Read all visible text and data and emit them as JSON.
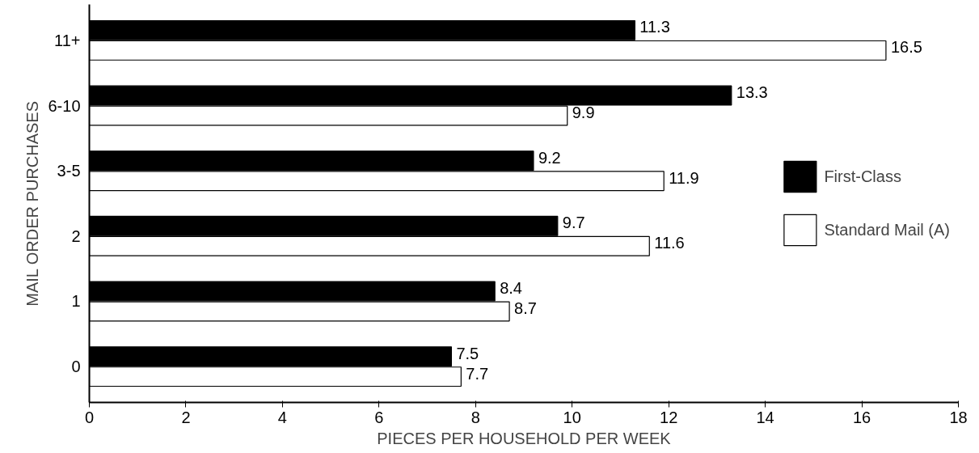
{
  "chart_data": {
    "type": "bar",
    "orientation": "horizontal",
    "xlabel": "PIECES PER HOUSEHOLD PER WEEK",
    "ylabel": "MAIL ORDER PURCHASES",
    "categories": [
      "11+",
      "6-10",
      "3-5",
      "2",
      "1",
      "0"
    ],
    "series": [
      {
        "name": "First-Class",
        "color": "#000000",
        "values": [
          11.3,
          13.3,
          9.2,
          9.7,
          8.4,
          7.5
        ]
      },
      {
        "name": "Standard Mail (A)",
        "color": "#ffffff",
        "values": [
          16.5,
          9.9,
          11.9,
          11.6,
          8.7,
          7.7
        ]
      }
    ],
    "xlim": [
      0,
      18
    ],
    "xticks": [
      0,
      2,
      4,
      6,
      8,
      10,
      12,
      14,
      16,
      18
    ],
    "data_labels": true,
    "grid": false,
    "legend": "right"
  }
}
